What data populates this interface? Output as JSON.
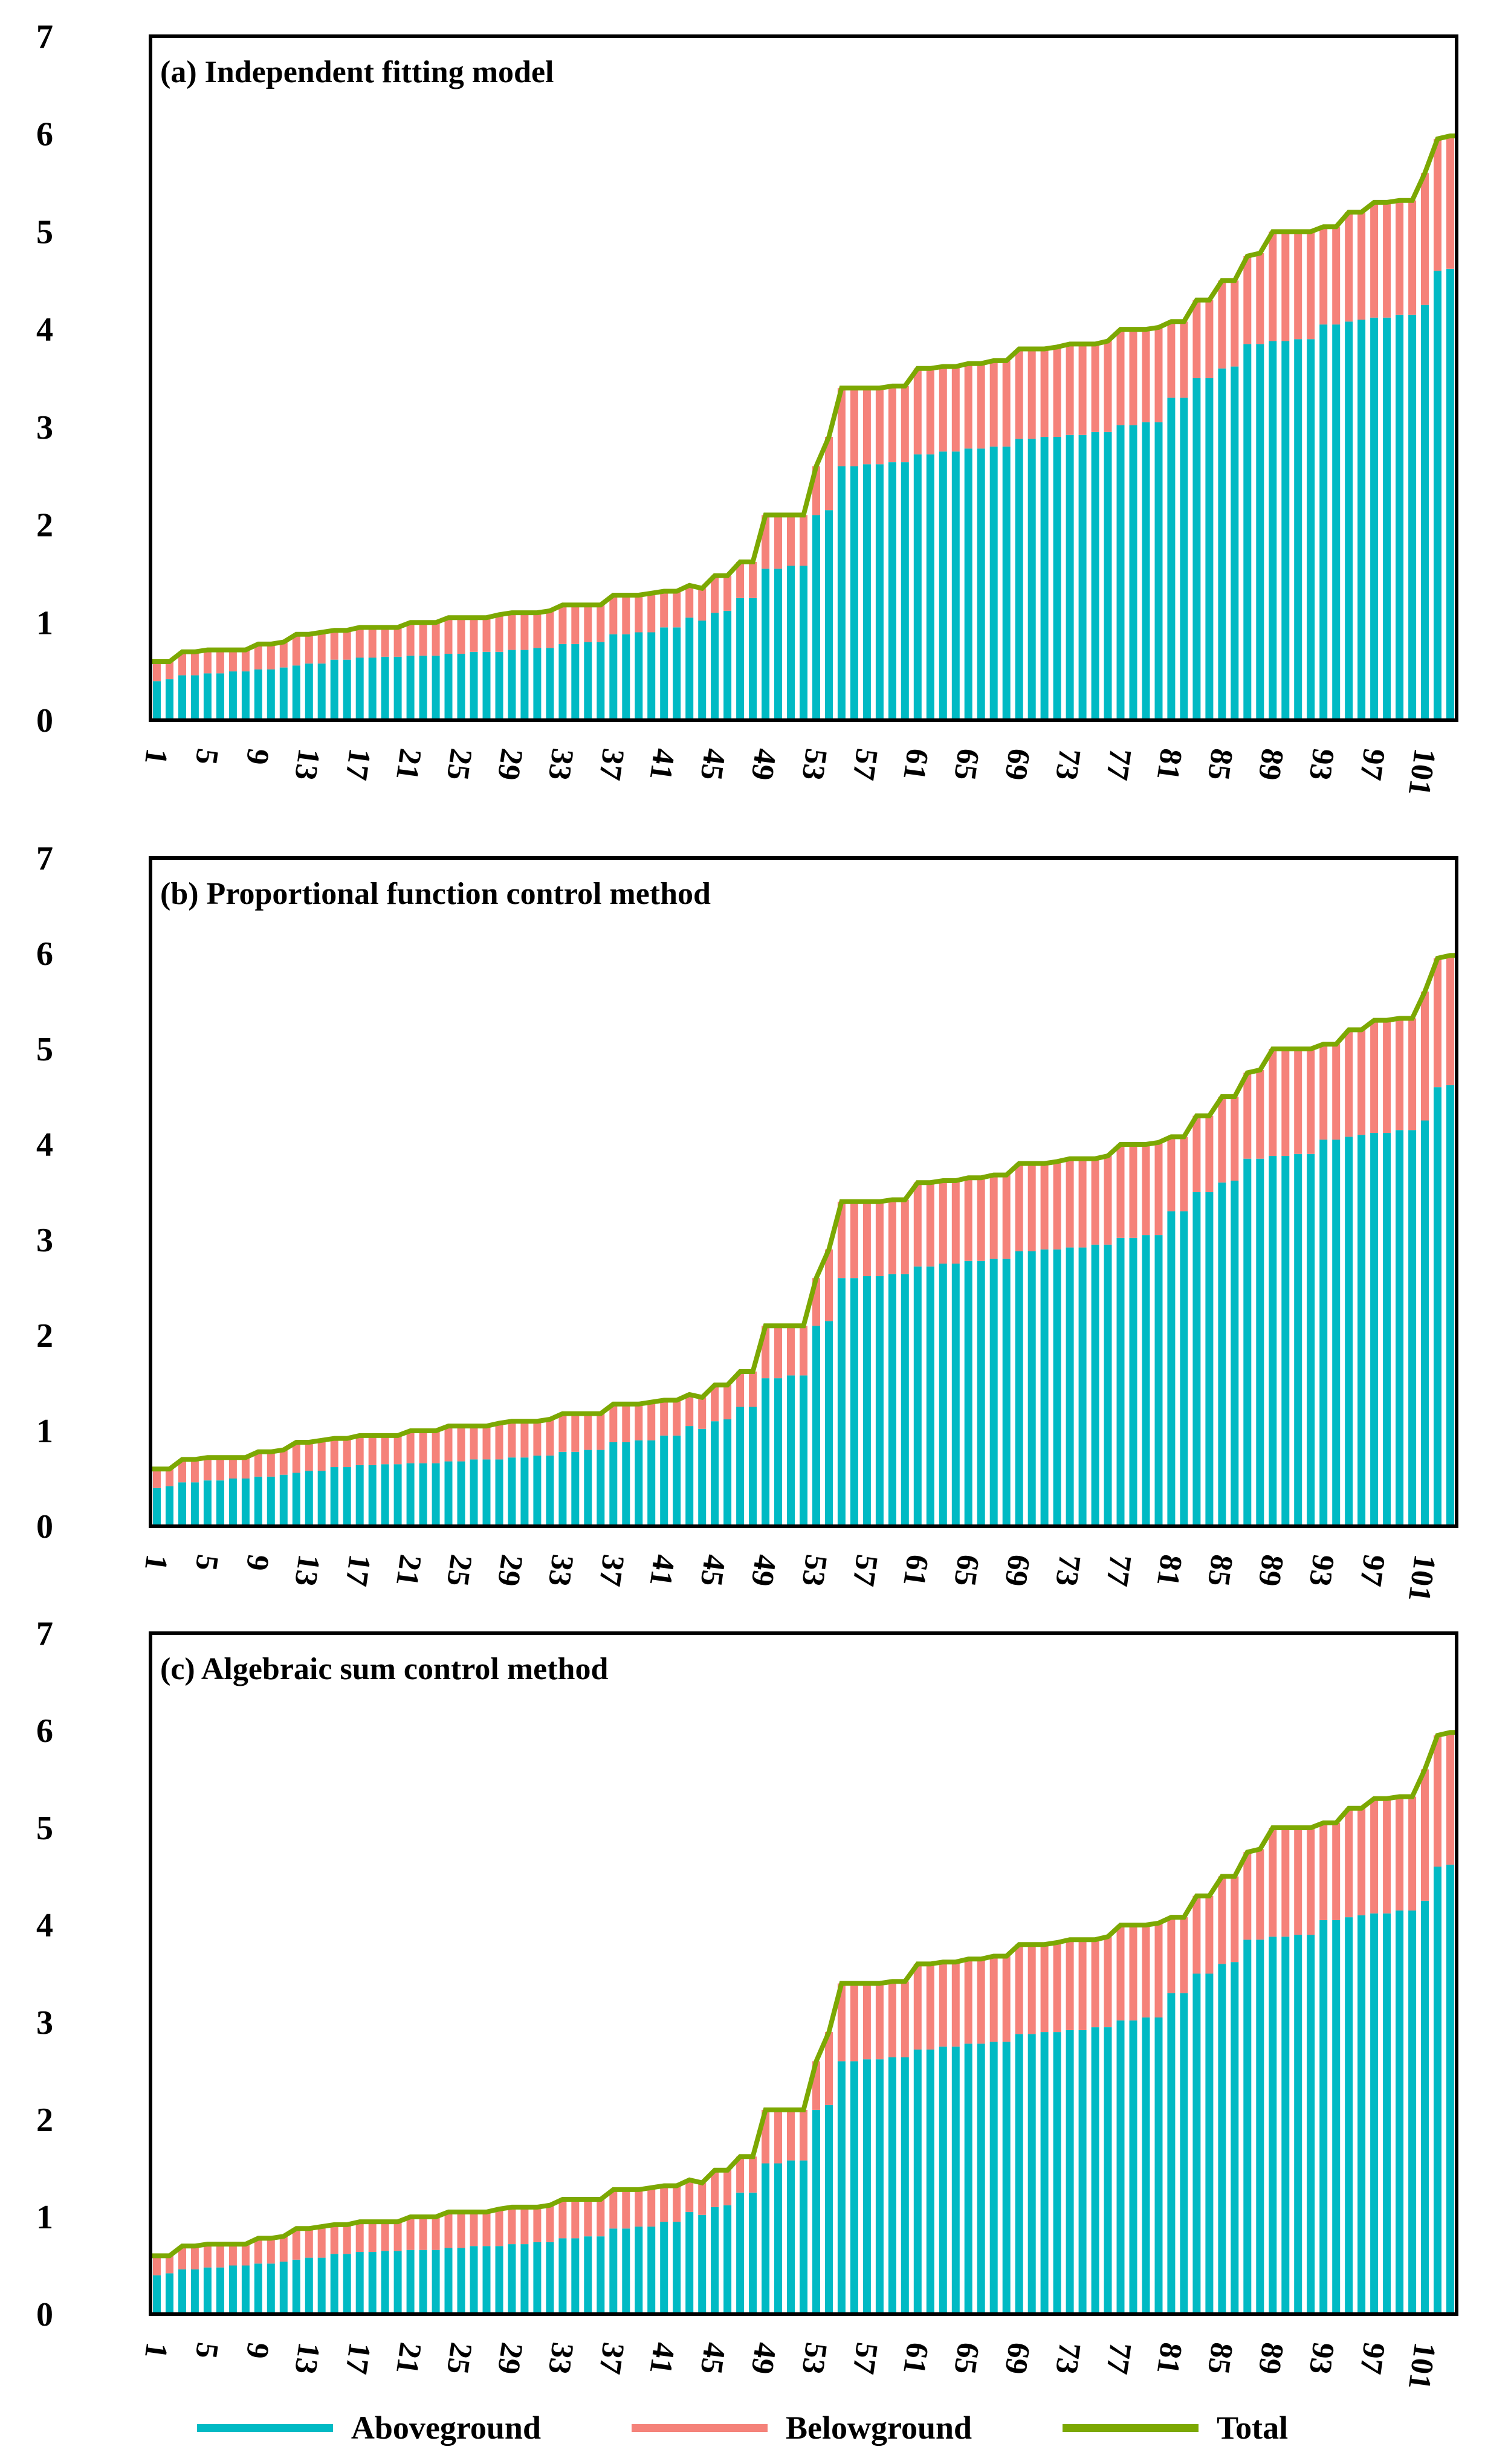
{
  "page": {
    "background": "#ffffff"
  },
  "colors": {
    "aboveground": "#00BAC4",
    "belowground": "#F5827A",
    "total_line": "#7CA802",
    "axis": "#000000",
    "text": "#000000"
  },
  "legend": {
    "items": [
      {
        "label": "Aboveground",
        "color_key": "aboveground"
      },
      {
        "label": "Belowground",
        "color_key": "belowground"
      },
      {
        "label": "Total",
        "color_key": "total_line"
      }
    ]
  },
  "axes": {
    "y_ticks": [
      0,
      1,
      2,
      3,
      4,
      5,
      6,
      7
    ],
    "y_max": 7,
    "x_tick_labels": [
      1,
      5,
      9,
      13,
      17,
      21,
      25,
      29,
      33,
      37,
      41,
      45,
      49,
      53,
      57,
      61,
      65,
      69,
      73,
      77,
      81,
      85,
      89,
      93,
      97,
      101
    ],
    "x_count": 103,
    "grid": "off",
    "legend_position": "bottom-center"
  },
  "chart_data": [
    {
      "type": "bar",
      "stacked": true,
      "panel": "a",
      "title": "(a) Independent fitting model",
      "xlabel": "",
      "ylabel": "",
      "ylim": [
        0,
        7
      ],
      "series": [
        {
          "name": "Aboveground",
          "values": [
            0.4,
            0.42,
            0.46,
            0.46,
            0.48,
            0.48,
            0.5,
            0.5,
            0.52,
            0.52,
            0.54,
            0.56,
            0.58,
            0.58,
            0.62,
            0.62,
            0.64,
            0.64,
            0.65,
            0.65,
            0.66,
            0.66,
            0.66,
            0.68,
            0.68,
            0.7,
            0.7,
            0.7,
            0.72,
            0.72,
            0.74,
            0.74,
            0.78,
            0.78,
            0.8,
            0.8,
            0.88,
            0.88,
            0.9,
            0.9,
            0.95,
            0.95,
            1.05,
            1.02,
            1.1,
            1.12,
            1.25,
            1.25,
            1.55,
            1.55,
            1.58,
            1.58,
            2.1,
            2.15,
            2.6,
            2.6,
            2.62,
            2.62,
            2.64,
            2.64,
            2.72,
            2.72,
            2.75,
            2.75,
            2.78,
            2.78,
            2.8,
            2.8,
            2.88,
            2.88,
            2.9,
            2.9,
            2.92,
            2.92,
            2.95,
            2.95,
            3.02,
            3.02,
            3.05,
            3.05,
            3.3,
            3.3,
            3.5,
            3.5,
            3.6,
            3.62,
            3.85,
            3.85,
            3.88,
            3.88,
            3.9,
            3.9,
            4.05,
            4.05,
            4.08,
            4.1,
            4.12,
            4.12,
            4.15,
            4.15,
            4.25,
            4.6,
            4.62
          ]
        },
        {
          "name": "Belowground",
          "values": [
            0.2,
            0.18,
            0.24,
            0.24,
            0.24,
            0.24,
            0.22,
            0.22,
            0.26,
            0.26,
            0.26,
            0.32,
            0.3,
            0.32,
            0.3,
            0.3,
            0.31,
            0.31,
            0.3,
            0.3,
            0.34,
            0.34,
            0.34,
            0.37,
            0.37,
            0.35,
            0.35,
            0.38,
            0.38,
            0.38,
            0.36,
            0.38,
            0.4,
            0.4,
            0.38,
            0.38,
            0.4,
            0.4,
            0.38,
            0.4,
            0.37,
            0.37,
            0.33,
            0.33,
            0.38,
            0.36,
            0.37,
            0.37,
            0.55,
            0.55,
            0.52,
            0.52,
            0.5,
            0.75,
            0.8,
            0.8,
            0.78,
            0.78,
            0.78,
            0.78,
            0.88,
            0.88,
            0.87,
            0.87,
            0.87,
            0.87,
            0.88,
            0.88,
            0.92,
            0.92,
            0.9,
            0.92,
            0.93,
            0.93,
            0.9,
            0.93,
            0.98,
            0.98,
            0.95,
            0.97,
            0.78,
            0.78,
            0.8,
            0.8,
            0.9,
            0.88,
            0.9,
            0.93,
            1.12,
            1.12,
            1.1,
            1.1,
            1.0,
            1.0,
            1.12,
            1.1,
            1.18,
            1.18,
            1.17,
            1.17,
            1.35,
            1.35,
            1.36
          ]
        }
      ],
      "total_line": {
        "name": "Total",
        "values": [
          0.6,
          0.6,
          0.7,
          0.7,
          0.72,
          0.72,
          0.72,
          0.72,
          0.78,
          0.78,
          0.8,
          0.88,
          0.88,
          0.9,
          0.92,
          0.92,
          0.95,
          0.95,
          0.95,
          0.95,
          1.0,
          1.0,
          1.0,
          1.05,
          1.05,
          1.05,
          1.05,
          1.08,
          1.1,
          1.1,
          1.1,
          1.12,
          1.18,
          1.18,
          1.18,
          1.18,
          1.28,
          1.28,
          1.28,
          1.3,
          1.32,
          1.32,
          1.38,
          1.35,
          1.48,
          1.48,
          1.62,
          1.62,
          2.1,
          2.1,
          2.1,
          2.1,
          2.6,
          2.9,
          3.4,
          3.4,
          3.4,
          3.4,
          3.42,
          3.42,
          3.6,
          3.6,
          3.62,
          3.62,
          3.65,
          3.65,
          3.68,
          3.68,
          3.8,
          3.8,
          3.8,
          3.82,
          3.85,
          3.85,
          3.85,
          3.88,
          4.0,
          4.0,
          4.0,
          4.02,
          4.08,
          4.08,
          4.3,
          4.3,
          4.5,
          4.5,
          4.75,
          4.78,
          5.0,
          5.0,
          5.0,
          5.0,
          5.05,
          5.05,
          5.2,
          5.2,
          5.3,
          5.3,
          5.32,
          5.32,
          5.6,
          5.95,
          5.98
        ]
      }
    },
    {
      "type": "bar",
      "stacked": true,
      "panel": "b",
      "title": "(b) Proportional function control method",
      "xlabel": "",
      "ylabel": "",
      "ylim": [
        0,
        7
      ],
      "series": [
        {
          "name": "Aboveground",
          "values": [
            0.4,
            0.42,
            0.46,
            0.46,
            0.48,
            0.48,
            0.5,
            0.5,
            0.52,
            0.52,
            0.54,
            0.56,
            0.58,
            0.58,
            0.62,
            0.62,
            0.64,
            0.64,
            0.65,
            0.65,
            0.66,
            0.66,
            0.66,
            0.68,
            0.68,
            0.7,
            0.7,
            0.7,
            0.72,
            0.72,
            0.74,
            0.74,
            0.78,
            0.78,
            0.8,
            0.8,
            0.88,
            0.88,
            0.9,
            0.9,
            0.95,
            0.95,
            1.05,
            1.02,
            1.1,
            1.12,
            1.25,
            1.25,
            1.55,
            1.55,
            1.58,
            1.58,
            2.1,
            2.15,
            2.6,
            2.6,
            2.62,
            2.62,
            2.64,
            2.64,
            2.72,
            2.72,
            2.75,
            2.75,
            2.78,
            2.78,
            2.8,
            2.8,
            2.88,
            2.88,
            2.9,
            2.9,
            2.92,
            2.92,
            2.95,
            2.95,
            3.02,
            3.02,
            3.05,
            3.05,
            3.3,
            3.3,
            3.5,
            3.5,
            3.6,
            3.62,
            3.85,
            3.85,
            3.88,
            3.88,
            3.9,
            3.9,
            4.05,
            4.05,
            4.08,
            4.1,
            4.12,
            4.12,
            4.15,
            4.15,
            4.25,
            4.6,
            4.62
          ]
        },
        {
          "name": "Belowground",
          "values": [
            0.2,
            0.18,
            0.24,
            0.24,
            0.24,
            0.24,
            0.22,
            0.22,
            0.26,
            0.26,
            0.26,
            0.32,
            0.3,
            0.32,
            0.3,
            0.3,
            0.31,
            0.31,
            0.3,
            0.3,
            0.34,
            0.34,
            0.34,
            0.37,
            0.37,
            0.35,
            0.35,
            0.38,
            0.38,
            0.38,
            0.36,
            0.38,
            0.4,
            0.4,
            0.38,
            0.38,
            0.4,
            0.4,
            0.38,
            0.4,
            0.37,
            0.37,
            0.33,
            0.33,
            0.38,
            0.36,
            0.37,
            0.37,
            0.55,
            0.55,
            0.52,
            0.52,
            0.5,
            0.75,
            0.8,
            0.8,
            0.78,
            0.78,
            0.78,
            0.78,
            0.88,
            0.88,
            0.87,
            0.87,
            0.87,
            0.87,
            0.88,
            0.88,
            0.92,
            0.92,
            0.9,
            0.92,
            0.93,
            0.93,
            0.9,
            0.93,
            0.98,
            0.98,
            0.95,
            0.97,
            0.78,
            0.78,
            0.8,
            0.8,
            0.9,
            0.88,
            0.9,
            0.93,
            1.12,
            1.12,
            1.1,
            1.1,
            1.0,
            1.0,
            1.12,
            1.1,
            1.18,
            1.18,
            1.17,
            1.17,
            1.35,
            1.35,
            1.36
          ]
        }
      ],
      "total_line": {
        "name": "Total",
        "values": [
          0.6,
          0.6,
          0.7,
          0.7,
          0.72,
          0.72,
          0.72,
          0.72,
          0.78,
          0.78,
          0.8,
          0.88,
          0.88,
          0.9,
          0.92,
          0.92,
          0.95,
          0.95,
          0.95,
          0.95,
          1.0,
          1.0,
          1.0,
          1.05,
          1.05,
          1.05,
          1.05,
          1.08,
          1.1,
          1.1,
          1.1,
          1.12,
          1.18,
          1.18,
          1.18,
          1.18,
          1.28,
          1.28,
          1.28,
          1.3,
          1.32,
          1.32,
          1.38,
          1.35,
          1.48,
          1.48,
          1.62,
          1.62,
          2.1,
          2.1,
          2.1,
          2.1,
          2.6,
          2.9,
          3.4,
          3.4,
          3.4,
          3.4,
          3.42,
          3.42,
          3.6,
          3.6,
          3.62,
          3.62,
          3.65,
          3.65,
          3.68,
          3.68,
          3.8,
          3.8,
          3.8,
          3.82,
          3.85,
          3.85,
          3.85,
          3.88,
          4.0,
          4.0,
          4.0,
          4.02,
          4.08,
          4.08,
          4.3,
          4.3,
          4.5,
          4.5,
          4.75,
          4.78,
          5.0,
          5.0,
          5.0,
          5.0,
          5.05,
          5.05,
          5.2,
          5.2,
          5.3,
          5.3,
          5.32,
          5.32,
          5.6,
          5.95,
          5.98
        ]
      }
    },
    {
      "type": "bar",
      "stacked": true,
      "panel": "c",
      "title": "(c) Algebraic sum control method",
      "xlabel": "",
      "ylabel": "",
      "ylim": [
        0,
        7
      ],
      "series": [
        {
          "name": "Aboveground",
          "values": [
            0.4,
            0.42,
            0.46,
            0.46,
            0.48,
            0.48,
            0.5,
            0.5,
            0.52,
            0.52,
            0.54,
            0.56,
            0.58,
            0.58,
            0.62,
            0.62,
            0.64,
            0.64,
            0.65,
            0.65,
            0.66,
            0.66,
            0.66,
            0.68,
            0.68,
            0.7,
            0.7,
            0.7,
            0.72,
            0.72,
            0.74,
            0.74,
            0.78,
            0.78,
            0.8,
            0.8,
            0.88,
            0.88,
            0.9,
            0.9,
            0.95,
            0.95,
            1.05,
            1.02,
            1.1,
            1.12,
            1.25,
            1.25,
            1.55,
            1.55,
            1.58,
            1.58,
            2.1,
            2.15,
            2.6,
            2.6,
            2.62,
            2.62,
            2.64,
            2.64,
            2.72,
            2.72,
            2.75,
            2.75,
            2.78,
            2.78,
            2.8,
            2.8,
            2.88,
            2.88,
            2.9,
            2.9,
            2.92,
            2.92,
            2.95,
            2.95,
            3.02,
            3.02,
            3.05,
            3.05,
            3.3,
            3.3,
            3.5,
            3.5,
            3.6,
            3.62,
            3.85,
            3.85,
            3.88,
            3.88,
            3.9,
            3.9,
            4.05,
            4.05,
            4.08,
            4.1,
            4.12,
            4.12,
            4.15,
            4.15,
            4.25,
            4.6,
            4.62
          ]
        },
        {
          "name": "Belowground",
          "values": [
            0.2,
            0.18,
            0.24,
            0.24,
            0.24,
            0.24,
            0.22,
            0.22,
            0.26,
            0.26,
            0.26,
            0.32,
            0.3,
            0.32,
            0.3,
            0.3,
            0.31,
            0.31,
            0.3,
            0.3,
            0.34,
            0.34,
            0.34,
            0.37,
            0.37,
            0.35,
            0.35,
            0.38,
            0.38,
            0.38,
            0.36,
            0.38,
            0.4,
            0.4,
            0.38,
            0.38,
            0.4,
            0.4,
            0.38,
            0.4,
            0.37,
            0.37,
            0.33,
            0.33,
            0.38,
            0.36,
            0.37,
            0.37,
            0.55,
            0.55,
            0.52,
            0.52,
            0.5,
            0.75,
            0.8,
            0.8,
            0.78,
            0.78,
            0.78,
            0.78,
            0.88,
            0.88,
            0.87,
            0.87,
            0.87,
            0.87,
            0.88,
            0.88,
            0.92,
            0.92,
            0.9,
            0.92,
            0.93,
            0.93,
            0.9,
            0.93,
            0.98,
            0.98,
            0.95,
            0.97,
            0.78,
            0.78,
            0.8,
            0.8,
            0.9,
            0.88,
            0.9,
            0.93,
            1.12,
            1.12,
            1.1,
            1.1,
            1.0,
            1.0,
            1.12,
            1.1,
            1.18,
            1.18,
            1.17,
            1.17,
            1.35,
            1.35,
            1.36
          ]
        }
      ],
      "total_line": {
        "name": "Total",
        "values": [
          0.6,
          0.6,
          0.7,
          0.7,
          0.72,
          0.72,
          0.72,
          0.72,
          0.78,
          0.78,
          0.8,
          0.88,
          0.88,
          0.9,
          0.92,
          0.92,
          0.95,
          0.95,
          0.95,
          0.95,
          1.0,
          1.0,
          1.0,
          1.05,
          1.05,
          1.05,
          1.05,
          1.08,
          1.1,
          1.1,
          1.1,
          1.12,
          1.18,
          1.18,
          1.18,
          1.18,
          1.28,
          1.28,
          1.28,
          1.3,
          1.32,
          1.32,
          1.38,
          1.35,
          1.48,
          1.48,
          1.62,
          1.62,
          2.1,
          2.1,
          2.1,
          2.1,
          2.6,
          2.9,
          3.4,
          3.4,
          3.4,
          3.4,
          3.42,
          3.42,
          3.6,
          3.6,
          3.62,
          3.62,
          3.65,
          3.65,
          3.68,
          3.68,
          3.8,
          3.8,
          3.8,
          3.82,
          3.85,
          3.85,
          3.85,
          3.88,
          4.0,
          4.0,
          4.0,
          4.02,
          4.08,
          4.08,
          4.3,
          4.3,
          4.5,
          4.5,
          4.75,
          4.78,
          5.0,
          5.0,
          5.0,
          5.0,
          5.05,
          5.05,
          5.2,
          5.2,
          5.3,
          5.3,
          5.32,
          5.32,
          5.6,
          5.95,
          5.98
        ]
      }
    }
  ]
}
